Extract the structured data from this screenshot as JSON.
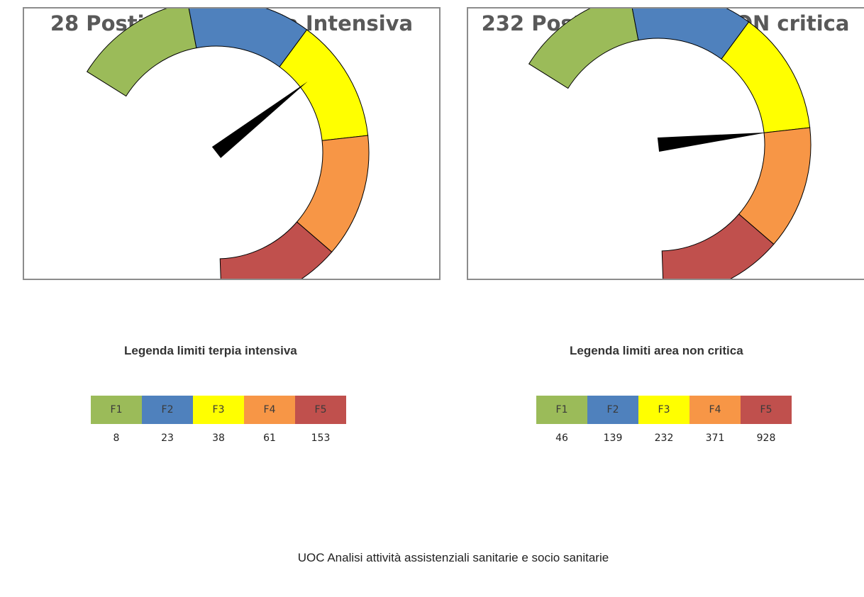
{
  "colors": {
    "F1": "#9bbb59",
    "F2": "#4f81bd",
    "F3": "#ffff00",
    "F4": "#f79646",
    "F5": "#c0504d",
    "needle": "#000000"
  },
  "chart_data": [
    {
      "type": "gauge",
      "title": "28 Posti letto Terapia Intensiva",
      "value": 28,
      "bands": [
        {
          "name": "F1",
          "limit": 8
        },
        {
          "name": "F2",
          "limit": 23
        },
        {
          "name": "F3",
          "limit": 38
        },
        {
          "name": "F4",
          "limit": 61
        },
        {
          "name": "F5",
          "limit": 153
        }
      ]
    },
    {
      "type": "gauge",
      "title": "232 Posti letto area NON critica",
      "value": 232,
      "bands": [
        {
          "name": "F1",
          "limit": 46
        },
        {
          "name": "F2",
          "limit": 139
        },
        {
          "name": "F3",
          "limit": 232
        },
        {
          "name": "F4",
          "limit": 371
        },
        {
          "name": "F5",
          "limit": 928
        }
      ]
    }
  ],
  "legends": [
    {
      "title": "Legenda limiti terpia intensiva"
    },
    {
      "title": "Legenda limiti area non critica"
    }
  ],
  "footer": "UOC Analisi attività assistenziali sanitarie e socio sanitarie"
}
